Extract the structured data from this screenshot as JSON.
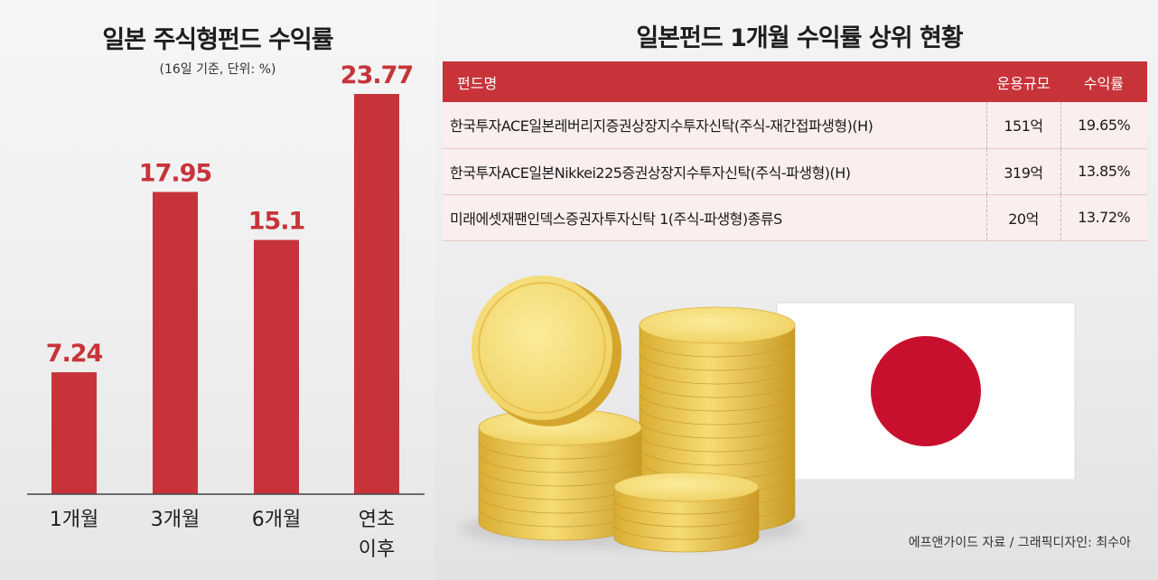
{
  "left": {
    "title": "일본 주식형펀드 수익률",
    "subtitle": "(16일 기준, 단위: %)"
  },
  "chart_data": {
    "type": "bar",
    "title": "일본 주식형펀드 수익률",
    "subtitle": "(16일 기준, 단위: %)",
    "categories": [
      "1개월",
      "3개월",
      "6개월",
      "연초\n이후"
    ],
    "values": [
      7.24,
      17.95,
      15.1,
      23.77
    ],
    "value_labels": [
      "7.24",
      "17.95",
      "15.1",
      "23.77"
    ],
    "ylim": [
      0,
      25
    ],
    "bar_color": "#c8333a",
    "grid": false
  },
  "right": {
    "title": "일본펀드 1개월 수익률 상위 현황",
    "table": {
      "headers": [
        "펀드명",
        "운용규모",
        "수익률"
      ],
      "rows": [
        [
          "한국투자ACE일본레버리지증권상장지수투자신탁(주식-재간접파생형)(H)",
          "151억",
          "19.65%"
        ],
        [
          "한국투자ACE일본Nikkei225증권상장지수투자신탁(주식-파생형)(H)",
          "319억",
          "13.85%"
        ],
        [
          "미래에셋재팬인덱스증권자투자신탁 1(주식-파생형)종류S",
          "20억",
          "13.72%"
        ]
      ]
    },
    "header_color": "#c8333a",
    "illustration": [
      "gold-coins",
      "japan-flag"
    ]
  },
  "credit": "에프앤가이드 자료 / 그래픽디자인: 최수아"
}
